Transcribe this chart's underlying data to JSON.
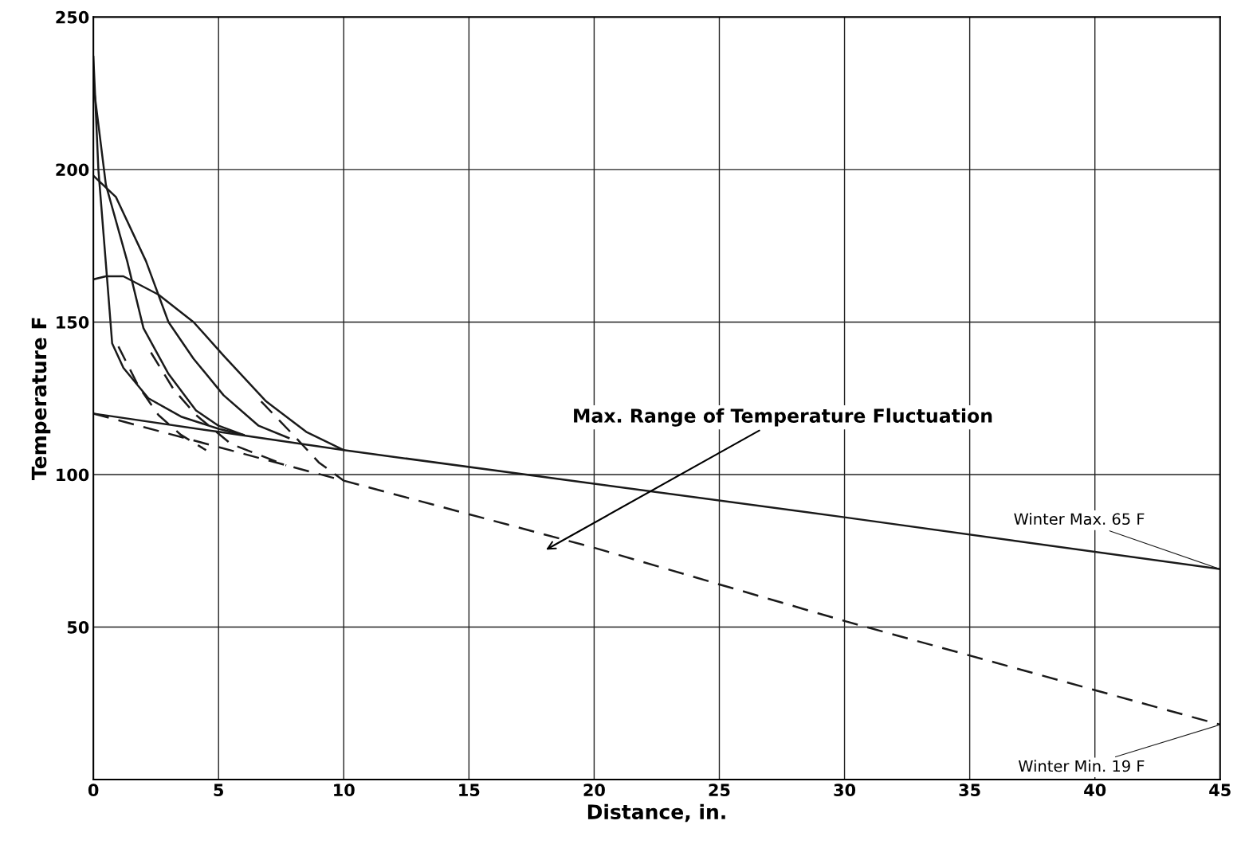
{
  "chart_data": {
    "type": "line",
    "xlabel": "Distance, in.",
    "ylabel": "Temperature F",
    "xlim": [
      0,
      45
    ],
    "ylim": [
      0,
      250
    ],
    "xticks": [
      0,
      5,
      10,
      15,
      20,
      25,
      30,
      35,
      40,
      45
    ],
    "yticks": [
      50,
      100,
      150,
      200,
      250
    ],
    "grid": true,
    "legend": false,
    "marker": "none",
    "series": [
      {
        "name": "Winter Max. 65 F",
        "color": "#1a1a1a",
        "line_style": "solid",
        "x": [
          0,
          5,
          10,
          20,
          30,
          45
        ],
        "values": [
          120,
          114,
          108,
          97,
          86,
          69
        ]
      },
      {
        "name": "Winter Min. 19 F",
        "color": "#1a1a1a",
        "line_style": "dashed",
        "x": [
          0,
          5,
          10,
          20,
          30,
          45
        ],
        "values": [
          120,
          109,
          98,
          76,
          52,
          18
        ]
      },
      {
        "color": "#1a1a1a",
        "line_style": "solid",
        "x": [
          0,
          0.2,
          0.55,
          0.75,
          1.2,
          2.2,
          3.5,
          5,
          6
        ],
        "values": [
          237,
          200,
          164,
          143,
          135,
          125,
          119,
          115,
          113
        ]
      },
      {
        "color": "#1a1a1a",
        "line_style": "solid",
        "x": [
          0,
          0.5,
          1.35,
          2,
          3,
          4.1,
          5,
          6
        ],
        "values": [
          228,
          195,
          170,
          148,
          133,
          121,
          116,
          113
        ]
      },
      {
        "color": "#1a1a1a",
        "line_style": "solid",
        "x": [
          0,
          0.9,
          2.1,
          3,
          4,
          5.2,
          6.6,
          7.8
        ],
        "values": [
          198,
          191,
          170,
          150,
          138,
          126,
          116,
          112
        ]
      },
      {
        "color": "#1a1a1a",
        "line_style": "solid",
        "x": [
          0,
          0.5,
          1.2,
          2.6,
          4,
          5.2,
          6.9,
          8.5,
          9.5,
          10
        ],
        "values": [
          164,
          165,
          165,
          159,
          150,
          139,
          124,
          114,
          110,
          108
        ]
      },
      {
        "color": "#1a1a1a",
        "line_style": "dashed",
        "x": [
          1.0,
          1.8,
          2.6,
          3.5,
          4.5
        ],
        "values": [
          142,
          129,
          119.5,
          113,
          108
        ]
      },
      {
        "color": "#1a1a1a",
        "line_style": "dashed",
        "x": [
          2.3,
          3.2,
          4.1,
          5.5,
          7.7
        ],
        "values": [
          140,
          128,
          119.5,
          110,
          103
        ]
      },
      {
        "color": "#1a1a1a",
        "line_style": "dashed",
        "x": [
          6.7,
          8.1,
          9,
          10
        ],
        "values": [
          124,
          112,
          104,
          98
        ]
      }
    ],
    "annotations": [
      "Max. Range of Temperature Fluctuation"
    ]
  }
}
